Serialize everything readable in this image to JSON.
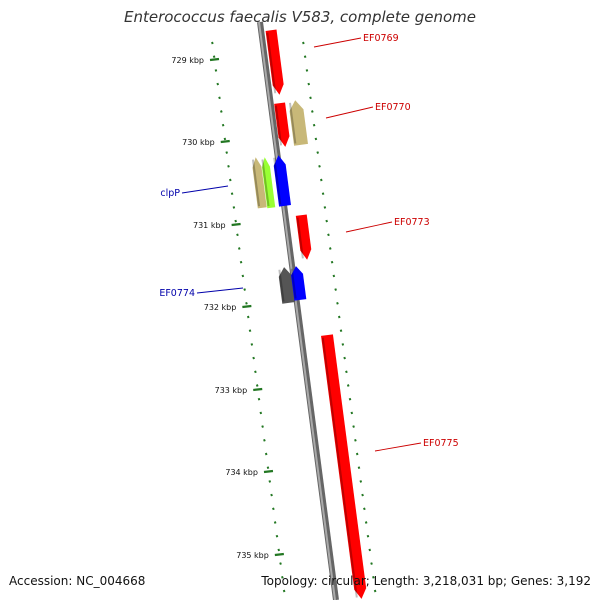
{
  "title": "Enterococcus faecalis V583, complete genome",
  "accession": "Accession: NC_004668",
  "summary": "Topology: circular; Length: 3,218,031 bp; Genes: 3,192",
  "colors": {
    "red": "#ff0000",
    "blue": "#0000ff",
    "olive": "#c8b878",
    "lime": "#99ff33",
    "dark_gray": "#555555",
    "backbone": "#888888",
    "tick": "#227722"
  },
  "scale": {
    "ticks": [
      {
        "label": "729 kbp"
      },
      {
        "label": "730 kbp"
      },
      {
        "label": "731 kbp"
      },
      {
        "label": "732 kbp"
      },
      {
        "label": "733 kbp"
      },
      {
        "label": "734 kbp"
      },
      {
        "label": "735 kbp"
      }
    ]
  },
  "genes": [
    {
      "label": "EF0769",
      "strand": "+",
      "color": "red"
    },
    {
      "label": "",
      "strand": "+",
      "color": "red"
    },
    {
      "label": "EF0770",
      "strand": "-",
      "color": "olive"
    },
    {
      "label": "clpP",
      "strand": "-",
      "color": "olive"
    },
    {
      "label": "",
      "strand": "-",
      "color": "lime"
    },
    {
      "label": "",
      "strand": "-",
      "color": "blue"
    },
    {
      "label": "EF0773",
      "strand": "+",
      "color": "red"
    },
    {
      "label": "EF0774",
      "strand": "-",
      "color": "dark_gray"
    },
    {
      "label": "",
      "strand": "-",
      "color": "blue"
    },
    {
      "label": "EF0775",
      "strand": "+",
      "color": "red"
    }
  ]
}
